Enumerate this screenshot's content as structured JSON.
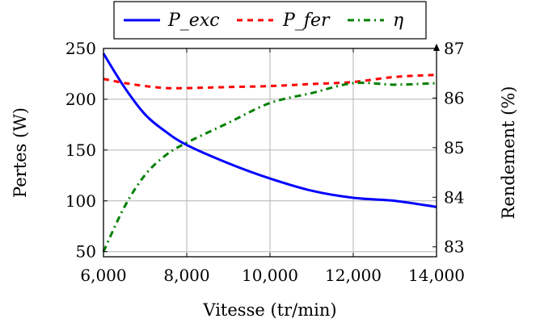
{
  "chart_data": {
    "type": "line",
    "xlabel": "Vitesse (tr/min)",
    "ylabel_left": "Pertes (W)",
    "ylabel_right": "Rendement (%)",
    "xlim": [
      6000,
      14000
    ],
    "ylim_left": [
      45,
      250
    ],
    "ylim_right": [
      82.8,
      87
    ],
    "x_ticks": [
      6000,
      8000,
      10000,
      12000,
      14000
    ],
    "x_tick_labels": [
      "6,000",
      "8,000",
      "10,000",
      "12,000",
      "14,000"
    ],
    "y_left_ticks": [
      50,
      100,
      150,
      200,
      250
    ],
    "y_left_tick_labels": [
      "50",
      "100",
      "150",
      "200",
      "250"
    ],
    "y_right_ticks": [
      83,
      84,
      85,
      86,
      87
    ],
    "y_right_tick_labels": [
      "83",
      "84",
      "85",
      "86",
      "87"
    ],
    "grid": true,
    "legend_position": "top-center",
    "series": [
      {
        "name": "P_exc",
        "axis": "left",
        "color": "#0000ff",
        "style": "solid",
        "x": [
          6000,
          6500,
          7000,
          7500,
          8000,
          9000,
          10000,
          11000,
          12000,
          13000,
          14000
        ],
        "y": [
          245,
          212,
          185,
          168,
          155,
          137,
          122,
          110,
          103,
          100,
          94
        ]
      },
      {
        "name": "P_fer",
        "axis": "left",
        "color": "#ff0000",
        "style": "dashed",
        "x": [
          6000,
          6500,
          7000,
          7500,
          8000,
          9000,
          10000,
          11000,
          12000,
          13000,
          14000
        ],
        "y": [
          220,
          216,
          213,
          211,
          211,
          212,
          213,
          215,
          217,
          222,
          224
        ]
      },
      {
        "name": "η",
        "axis": "right",
        "color": "#008000",
        "style": "dashdot",
        "x": [
          6000,
          6500,
          7000,
          7500,
          8000,
          9000,
          10000,
          11000,
          12000,
          13000,
          14000
        ],
        "y": [
          82.9,
          83.8,
          84.45,
          84.85,
          85.1,
          85.5,
          85.9,
          86.1,
          86.3,
          86.27,
          86.3
        ]
      }
    ]
  }
}
